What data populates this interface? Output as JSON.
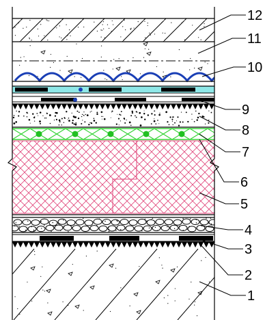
{
  "labels": [
    {
      "id": "12",
      "text": "12"
    },
    {
      "id": "11",
      "text": "11"
    },
    {
      "id": "10",
      "text": "10"
    },
    {
      "id": "9",
      "text": "9"
    },
    {
      "id": "8",
      "text": "8"
    },
    {
      "id": "7",
      "text": "7"
    },
    {
      "id": "6",
      "text": "6"
    },
    {
      "id": "5",
      "text": "5"
    },
    {
      "id": "4",
      "text": "4"
    },
    {
      "id": "3",
      "text": "3"
    },
    {
      "id": "2",
      "text": "2"
    },
    {
      "id": "1",
      "text": "1"
    }
  ],
  "colors": {
    "outline": "#000000",
    "tile": "#1a3fb5",
    "membrane_cyan": "#8fe8e8",
    "mesh": "#e0457a",
    "green_line": "#3ad43a",
    "green_dot": "#22c022"
  }
}
